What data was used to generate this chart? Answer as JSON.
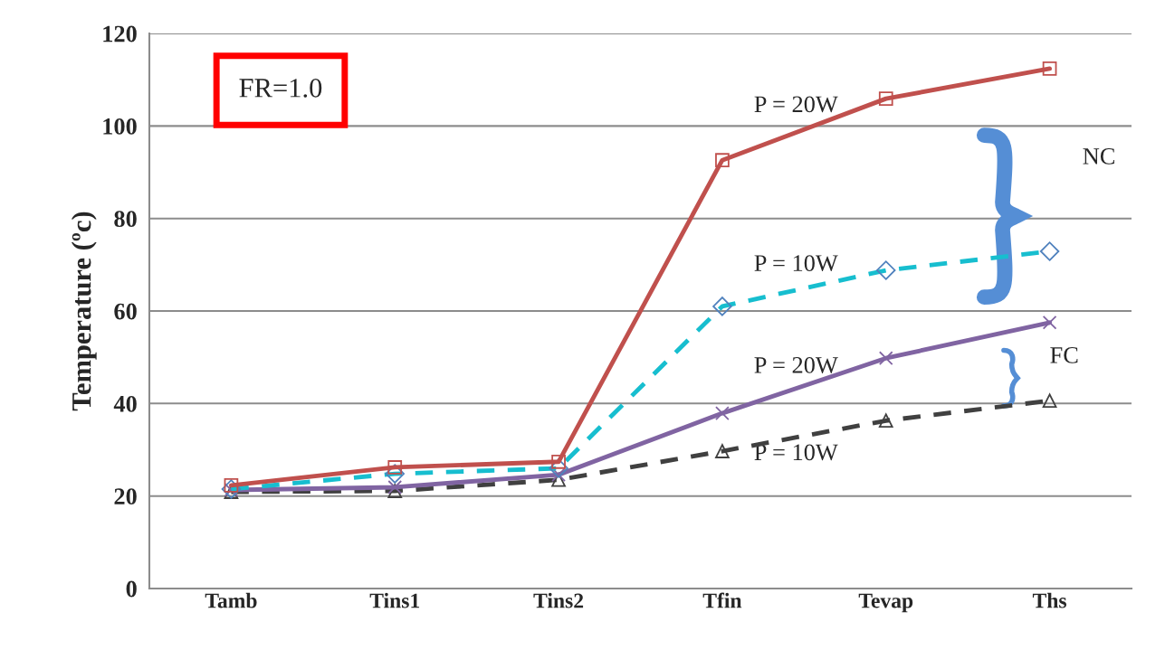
{
  "chart_data": {
    "type": "line",
    "ylabel": "Temperature (ºc)",
    "categories": [
      "Tamb",
      "Tins1",
      "Tins2",
      "Tfin",
      "Tevap",
      "Ths"
    ],
    "series": [
      {
        "name": "P = 20W",
        "color": "#c0504d",
        "marker": "square",
        "line_style": "solid",
        "values": [
          22.3,
          26.2,
          27.4,
          92.6,
          105.9,
          112.4
        ]
      },
      {
        "name": "P = 10W",
        "color": "#17becf",
        "marker": "diamond",
        "line_style": "dashed",
        "values": [
          21.5,
          24.8,
          26.0,
          61.0,
          68.8,
          72.9
        ]
      },
      {
        "name": "P = 20W",
        "color": "#8064a2",
        "marker": "cross",
        "line_style": "solid",
        "values": [
          21.3,
          21.9,
          24.6,
          37.9,
          49.8,
          57.5
        ]
      },
      {
        "name": "P = 10W",
        "color": "#404040",
        "marker": "triangle",
        "line_style": "dashed",
        "values": [
          20.9,
          21.1,
          23.5,
          29.7,
          36.3,
          40.6
        ]
      }
    ],
    "ylim": [
      0,
      120
    ],
    "yticks": [
      0,
      20,
      40,
      60,
      80,
      100,
      120
    ],
    "grid": "y",
    "legend": false,
    "annotations": [
      "FR=1.0",
      "NC",
      "FC"
    ]
  }
}
